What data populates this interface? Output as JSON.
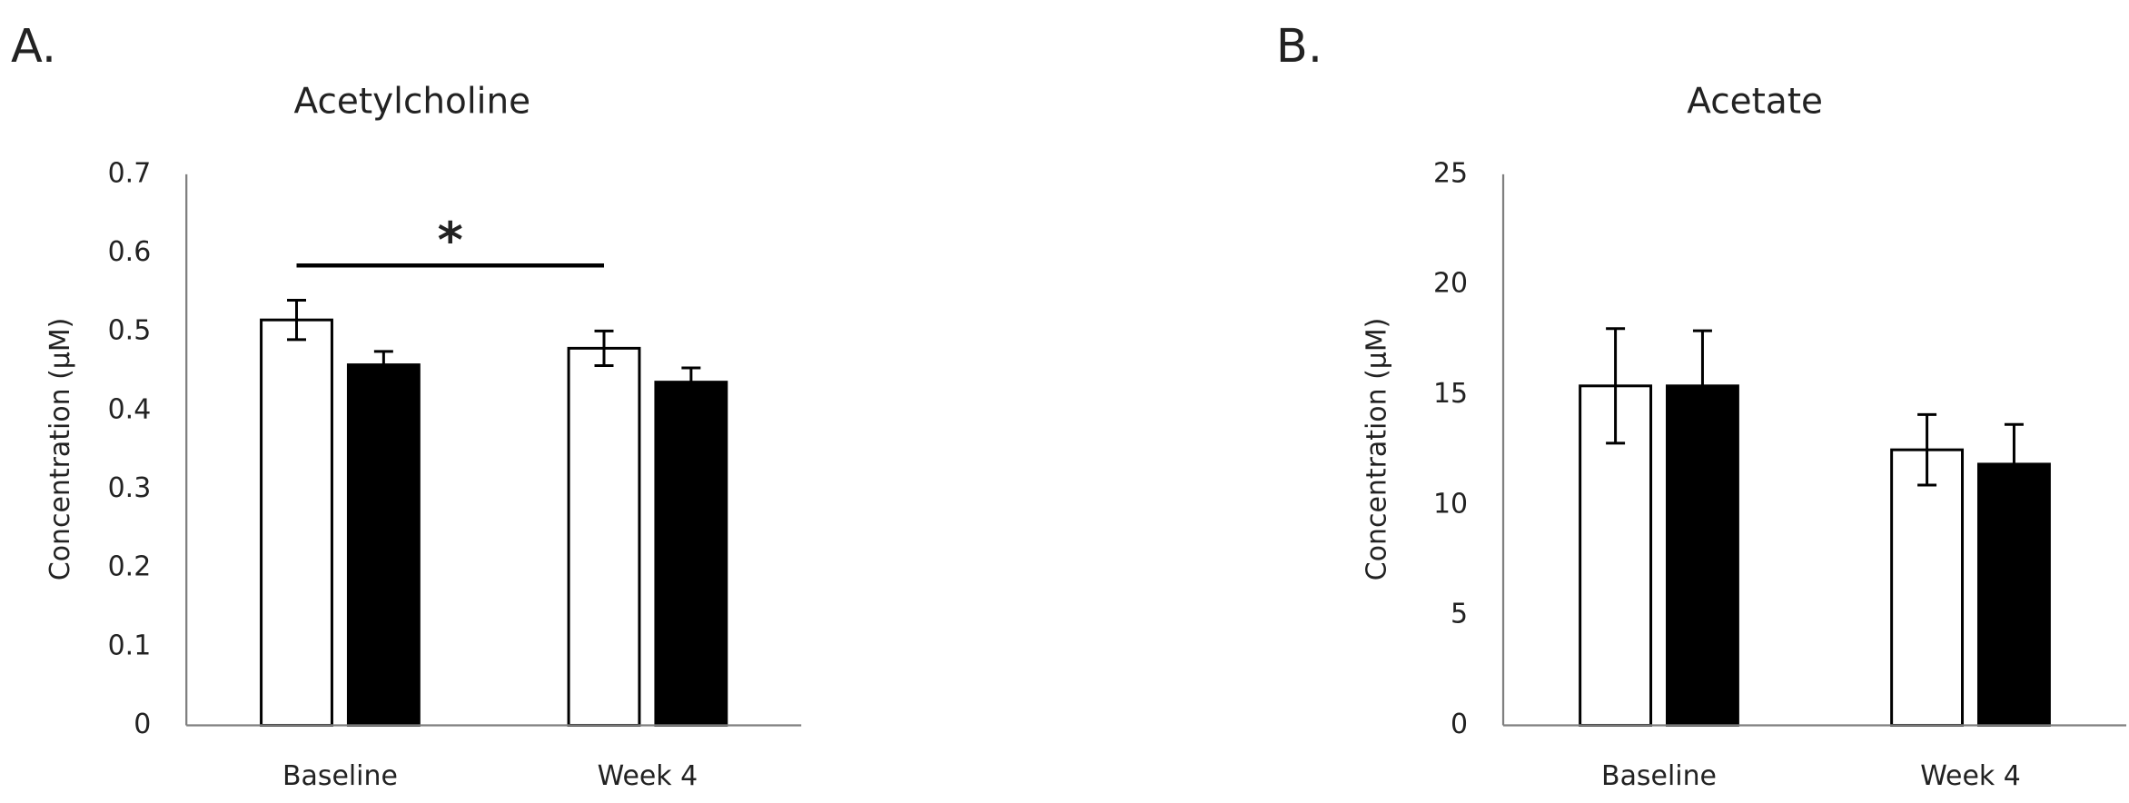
{
  "chart_data": [
    {
      "type": "bar",
      "panel_label": "A.",
      "title": "Acetylcholine",
      "y_label": "Concentration (μM)",
      "categories": [
        "Baseline",
        "Week 4"
      ],
      "series": [
        {
          "color": "#ffffff",
          "values": [
            0.515,
            0.479
          ],
          "errors": [
            0.025,
            0.022
          ]
        },
        {
          "color": "#000000",
          "values": [
            0.458,
            0.436
          ],
          "errors": [
            0.017,
            0.018
          ]
        }
      ],
      "ylim": [
        0,
        0.7
      ],
      "yticks": [
        0,
        0.1,
        0.2,
        0.3,
        0.4,
        0.5,
        0.6,
        0.7
      ],
      "grid": false,
      "annotation": "*"
    },
    {
      "type": "bar",
      "panel_label": "B.",
      "title": "Acetate",
      "y_label": "Concentration (μM)",
      "categories": [
        "Baseline",
        "Week 4"
      ],
      "series": [
        {
          "color": "#ffffff",
          "values": [
            15.4,
            12.5
          ],
          "errors": [
            2.6,
            1.6
          ]
        },
        {
          "color": "#000000",
          "values": [
            15.4,
            11.85
          ],
          "errors": [
            2.5,
            1.8
          ]
        }
      ],
      "ylim": [
        0,
        25
      ],
      "yticks": [
        0,
        5,
        10,
        15,
        20,
        25
      ],
      "grid": false
    }
  ]
}
